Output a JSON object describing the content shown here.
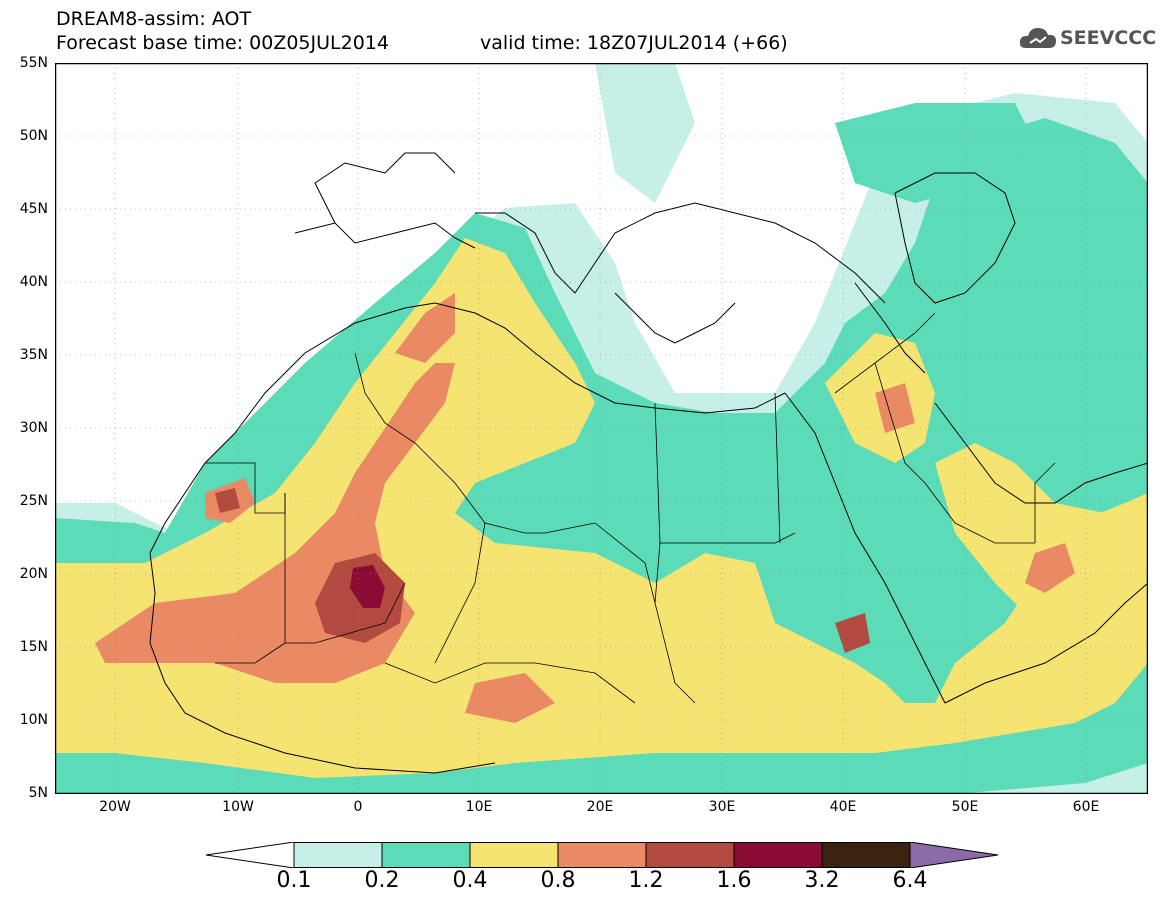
{
  "header": {
    "title": "DREAM8-assim: AOT",
    "base_time": "Forecast base time: 00Z05JUL2014",
    "valid_time": "valid time: 18Z07JUL2014 (+66)"
  },
  "logo": {
    "text": "SEEVCCC",
    "icon": "cloud-icon"
  },
  "axes": {
    "lat_labels": [
      "55N",
      "50N",
      "45N",
      "40N",
      "35N",
      "30N",
      "25N",
      "20N",
      "15N",
      "10N",
      "5N"
    ],
    "lon_labels": [
      "20W",
      "10W",
      "0",
      "10E",
      "20E",
      "30E",
      "40E",
      "50E",
      "60E"
    ]
  },
  "colorbar": {
    "labels": [
      "0.1",
      "0.2",
      "0.4",
      "0.8",
      "1.2",
      "1.6",
      "3.2",
      "6.4"
    ],
    "colors": [
      "#ffffff",
      "#c6efe8",
      "#5bdbb8",
      "#f5e372",
      "#e98a65",
      "#b34a3f",
      "#8a0b34",
      "#3b2311",
      "#8b6aa8"
    ]
  }
}
